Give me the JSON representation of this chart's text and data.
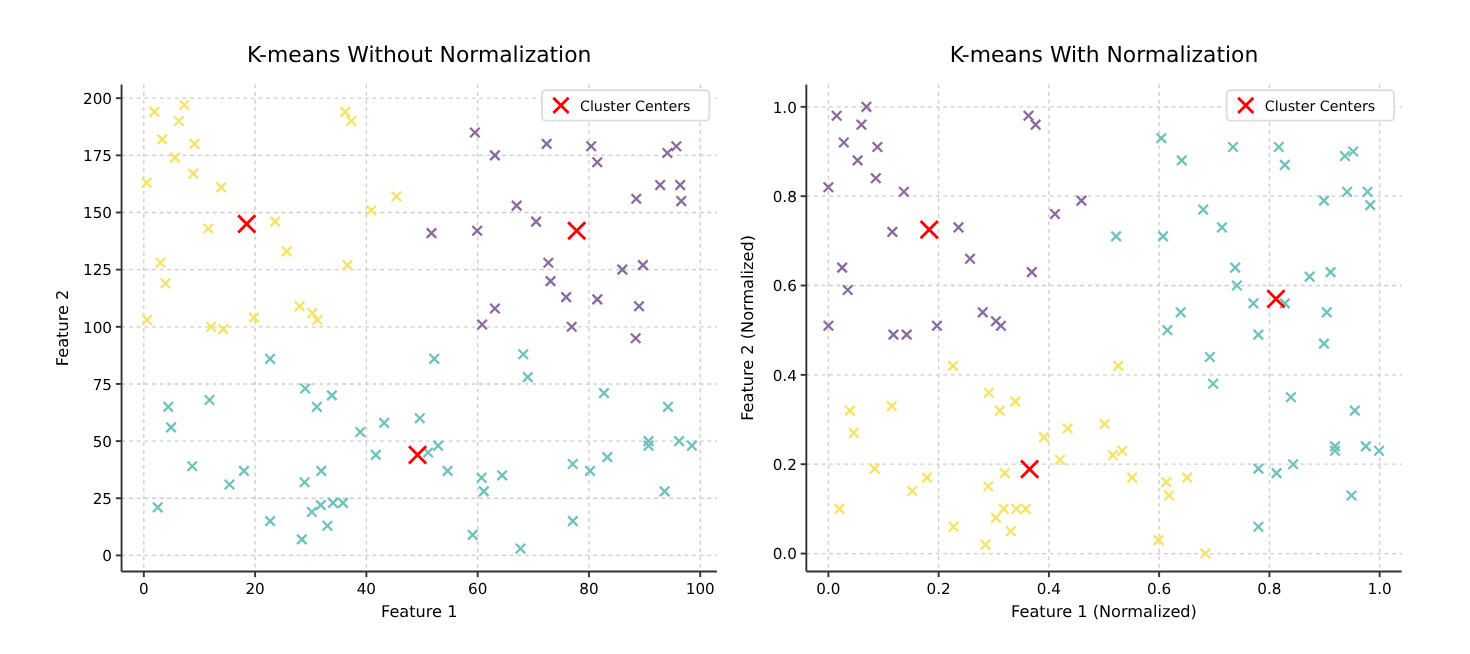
{
  "chart_data": [
    {
      "type": "scatter",
      "title": "K-means Without Normalization",
      "xlabel": "Feature 1",
      "ylabel": "Feature 2",
      "xlim": [
        -4,
        103
      ],
      "ylim": [
        -7,
        206
      ],
      "xticks": [
        0,
        20,
        40,
        60,
        80,
        100
      ],
      "yticks": [
        0,
        25,
        50,
        75,
        100,
        125,
        150,
        175,
        200
      ],
      "grid": true,
      "legend": "top right",
      "marker": "cross",
      "series": [
        {
          "color": "#f3e464",
          "x": [
            1.9,
            7.3,
            3.3,
            6.3,
            9.1,
            5.6,
            0.5,
            8.9,
            13.9,
            11.6,
            23.6,
            25.7,
            3.0,
            3.9,
            0.6,
            12.1,
            14.3,
            19.8,
            28.0,
            30.3,
            31.2,
            36.2,
            37.3,
            40.9,
            45.4,
            36.6
          ],
          "values": [
            194,
            197,
            182,
            190,
            180,
            174,
            163,
            167,
            161,
            143,
            146,
            133,
            128,
            119,
            103,
            100,
            99,
            104,
            109,
            106,
            103,
            194,
            190,
            151,
            157,
            127
          ]
        },
        {
          "color": "#8a6a9e",
          "x": [
            59.5,
            63.1,
            72.4,
            80.4,
            81.5,
            94.1,
            95.7,
            88.5,
            92.8,
            96.4,
            96.6,
            67.0,
            70.5,
            51.7,
            59.9,
            72.7,
            73.1,
            86.0,
            89.7,
            75.9,
            81.5,
            63.1,
            60.8,
            76.9,
            89.0,
            88.4
          ],
          "values": [
            185,
            175,
            180,
            179,
            172,
            176,
            179,
            156,
            162,
            162,
            155,
            153,
            146,
            141,
            142,
            128,
            120,
            125,
            127,
            113,
            112,
            108,
            101,
            100,
            109,
            95
          ]
        },
        {
          "color": "#6fc2bb",
          "x": [
            22.7,
            52.2,
            68.2,
            69.0,
            29.0,
            4.4,
            11.8,
            33.8,
            31.1,
            4.9,
            82.7,
            94.2,
            49.6,
            43.2,
            38.9,
            52.9,
            51.1,
            41.7,
            90.7,
            90.7,
            96.2,
            98.5,
            8.7,
            18.0,
            15.4,
            31.9,
            28.9,
            54.6,
            77.1,
            80.2,
            83.3,
            60.7,
            64.4,
            61.1,
            2.5,
            31.8,
            30.2,
            34.0,
            35.8,
            22.7,
            33.0,
            28.4,
            59.1,
            67.7,
            77.1,
            93.6
          ],
          "values": [
            86,
            86,
            88,
            78,
            73,
            65,
            68,
            70,
            65,
            56,
            71,
            65,
            60,
            58,
            54,
            48,
            45,
            44,
            50,
            48,
            50,
            48,
            39,
            37,
            31,
            37,
            32,
            37,
            40,
            37,
            43,
            34,
            35,
            28,
            21,
            22,
            19,
            23,
            23,
            15,
            13,
            7,
            9,
            3,
            15,
            28
          ]
        },
        {
          "name": "Cluster Centers",
          "color": "#ff0000",
          "x": [
            18.5,
            77.8,
            49.2
          ],
          "values": [
            145,
            142,
            44
          ]
        }
      ]
    },
    {
      "type": "scatter",
      "title": "K-means With Normalization",
      "xlabel": "Feature 1 (Normalized)",
      "ylabel": "Feature 2 (Normalized)",
      "xlim": [
        -0.04,
        1.04
      ],
      "ylim": [
        -0.04,
        1.05
      ],
      "xticks": [
        {
          "value": 0,
          "label": "0.0"
        },
        {
          "value": 0.2,
          "label": "0.2"
        },
        {
          "value": 0.4,
          "label": "0.4"
        },
        {
          "value": 0.6,
          "label": "0.6"
        },
        {
          "value": 0.8,
          "label": "0.8"
        },
        {
          "value": 1,
          "label": "1.0"
        }
      ],
      "yticks": [
        {
          "value": 0,
          "label": "0.0"
        },
        {
          "value": 0.2,
          "label": "0.2"
        },
        {
          "value": 0.4,
          "label": "0.4"
        },
        {
          "value": 0.6,
          "label": "0.6"
        },
        {
          "value": 0.8,
          "label": "0.8"
        },
        {
          "value": 1,
          "label": "1.0"
        }
      ],
      "grid": true,
      "legend": "top right",
      "marker": "cross",
      "series": [
        {
          "color": "#8a6a9e",
          "x": [
            0.015,
            0.069,
            0.06,
            0.028,
            0.089,
            0.053,
            0.086,
            0.0,
            0.137,
            0.363,
            0.376,
            0.116,
            0.236,
            0.257,
            0.025,
            0.035,
            0.369,
            0.411,
            0.459,
            0.0,
            0.118,
            0.142,
            0.197,
            0.28,
            0.304,
            0.313
          ],
          "values": [
            0.98,
            1.0,
            0.96,
            0.92,
            0.91,
            0.88,
            0.84,
            0.82,
            0.81,
            0.98,
            0.96,
            0.72,
            0.73,
            0.66,
            0.64,
            0.59,
            0.63,
            0.76,
            0.79,
            0.51,
            0.49,
            0.49,
            0.51,
            0.54,
            0.52,
            0.51
          ]
        },
        {
          "color": "#6fc2bb",
          "x": [
            0.604,
            0.641,
            0.734,
            0.817,
            0.828,
            0.937,
            0.952,
            0.899,
            0.941,
            0.978,
            0.983,
            0.68,
            0.714,
            0.522,
            0.607,
            0.738,
            0.741,
            0.873,
            0.911,
            0.771,
            0.828,
            0.639,
            0.615,
            0.78,
            0.904,
            0.899,
            0.692,
            0.698,
            0.839,
            0.955,
            0.919,
            0.919,
            0.975,
            0.999,
            0.78,
            0.813,
            0.843,
            0.949,
            0.78
          ],
          "values": [
            0.93,
            0.88,
            0.91,
            0.91,
            0.87,
            0.89,
            0.9,
            0.79,
            0.81,
            0.81,
            0.78,
            0.77,
            0.73,
            0.71,
            0.71,
            0.64,
            0.6,
            0.62,
            0.63,
            0.56,
            0.56,
            0.54,
            0.5,
            0.49,
            0.54,
            0.47,
            0.44,
            0.38,
            0.35,
            0.32,
            0.24,
            0.23,
            0.24,
            0.23,
            0.19,
            0.18,
            0.2,
            0.13,
            0.06
          ]
        },
        {
          "color": "#f3e464",
          "x": [
            0.226,
            0.526,
            0.291,
            0.039,
            0.115,
            0.339,
            0.311,
            0.046,
            0.501,
            0.434,
            0.391,
            0.533,
            0.516,
            0.42,
            0.084,
            0.179,
            0.152,
            0.32,
            0.29,
            0.551,
            0.613,
            0.651,
            0.618,
            0.02,
            0.318,
            0.304,
            0.341,
            0.358,
            0.227,
            0.331,
            0.285,
            0.599,
            0.684
          ],
          "values": [
            0.42,
            0.42,
            0.36,
            0.32,
            0.33,
            0.34,
            0.32,
            0.27,
            0.29,
            0.28,
            0.26,
            0.23,
            0.22,
            0.21,
            0.19,
            0.17,
            0.14,
            0.18,
            0.15,
            0.17,
            0.16,
            0.17,
            0.13,
            0.1,
            0.1,
            0.08,
            0.1,
            0.1,
            0.06,
            0.05,
            0.02,
            0.03,
            0.0
          ]
        },
        {
          "name": "Cluster Centers",
          "color": "#ff0000",
          "x": [
            0.183,
            0.812,
            0.365
          ],
          "values": [
            0.725,
            0.57,
            0.189
          ]
        }
      ]
    }
  ]
}
